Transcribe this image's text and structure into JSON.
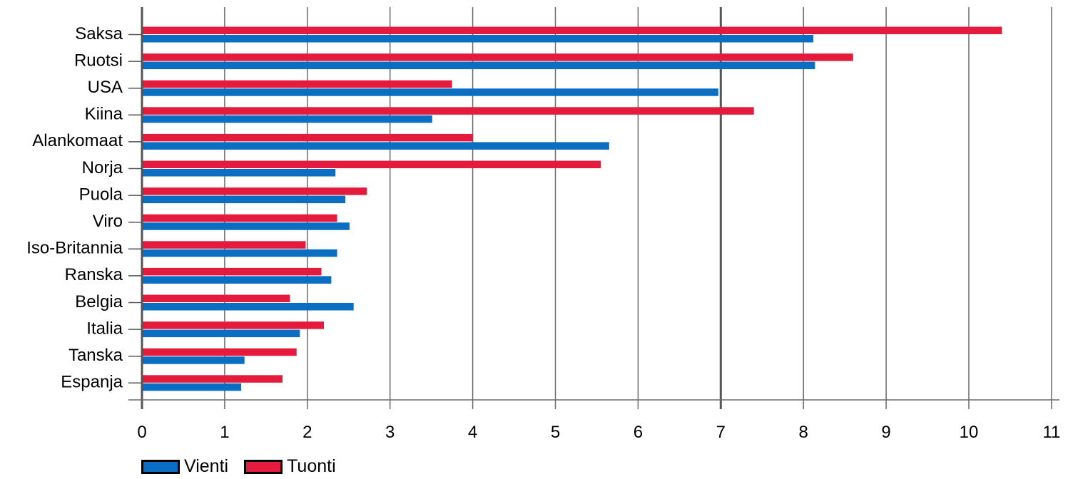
{
  "colors": {
    "vienti": "#0a6fc2",
    "tuonti": "#e41b3c"
  },
  "legend": {
    "vienti": "Vienti",
    "tuonti": "Tuonti"
  },
  "chart_data": {
    "type": "bar",
    "orientation": "horizontal",
    "categories": [
      "Saksa",
      "Ruotsi",
      "USA",
      "Kiina",
      "Alankomaat",
      "Norja",
      "Puola",
      "Viro",
      "Iso-Britannia",
      "Ranska",
      "Belgia",
      "Italia",
      "Tanska",
      "Espanja"
    ],
    "series": [
      {
        "name": "Tuonti",
        "values": [
          10.4,
          8.6,
          3.75,
          7.4,
          4.0,
          5.55,
          2.72,
          2.36,
          1.98,
          2.17,
          1.79,
          2.2,
          1.87,
          1.7
        ]
      },
      {
        "name": "Vienti",
        "values": [
          8.12,
          8.14,
          6.97,
          3.51,
          5.65,
          2.34,
          2.46,
          2.51,
          2.36,
          2.29,
          2.56,
          1.91,
          1.24,
          1.2
        ]
      }
    ],
    "xlim": [
      0,
      11
    ],
    "xticks": [
      "0",
      "1",
      "2",
      "3",
      "4",
      "5",
      "6",
      "7",
      "8",
      "9",
      "10",
      "11"
    ],
    "grid": true,
    "legend_position": "bottom-left"
  }
}
